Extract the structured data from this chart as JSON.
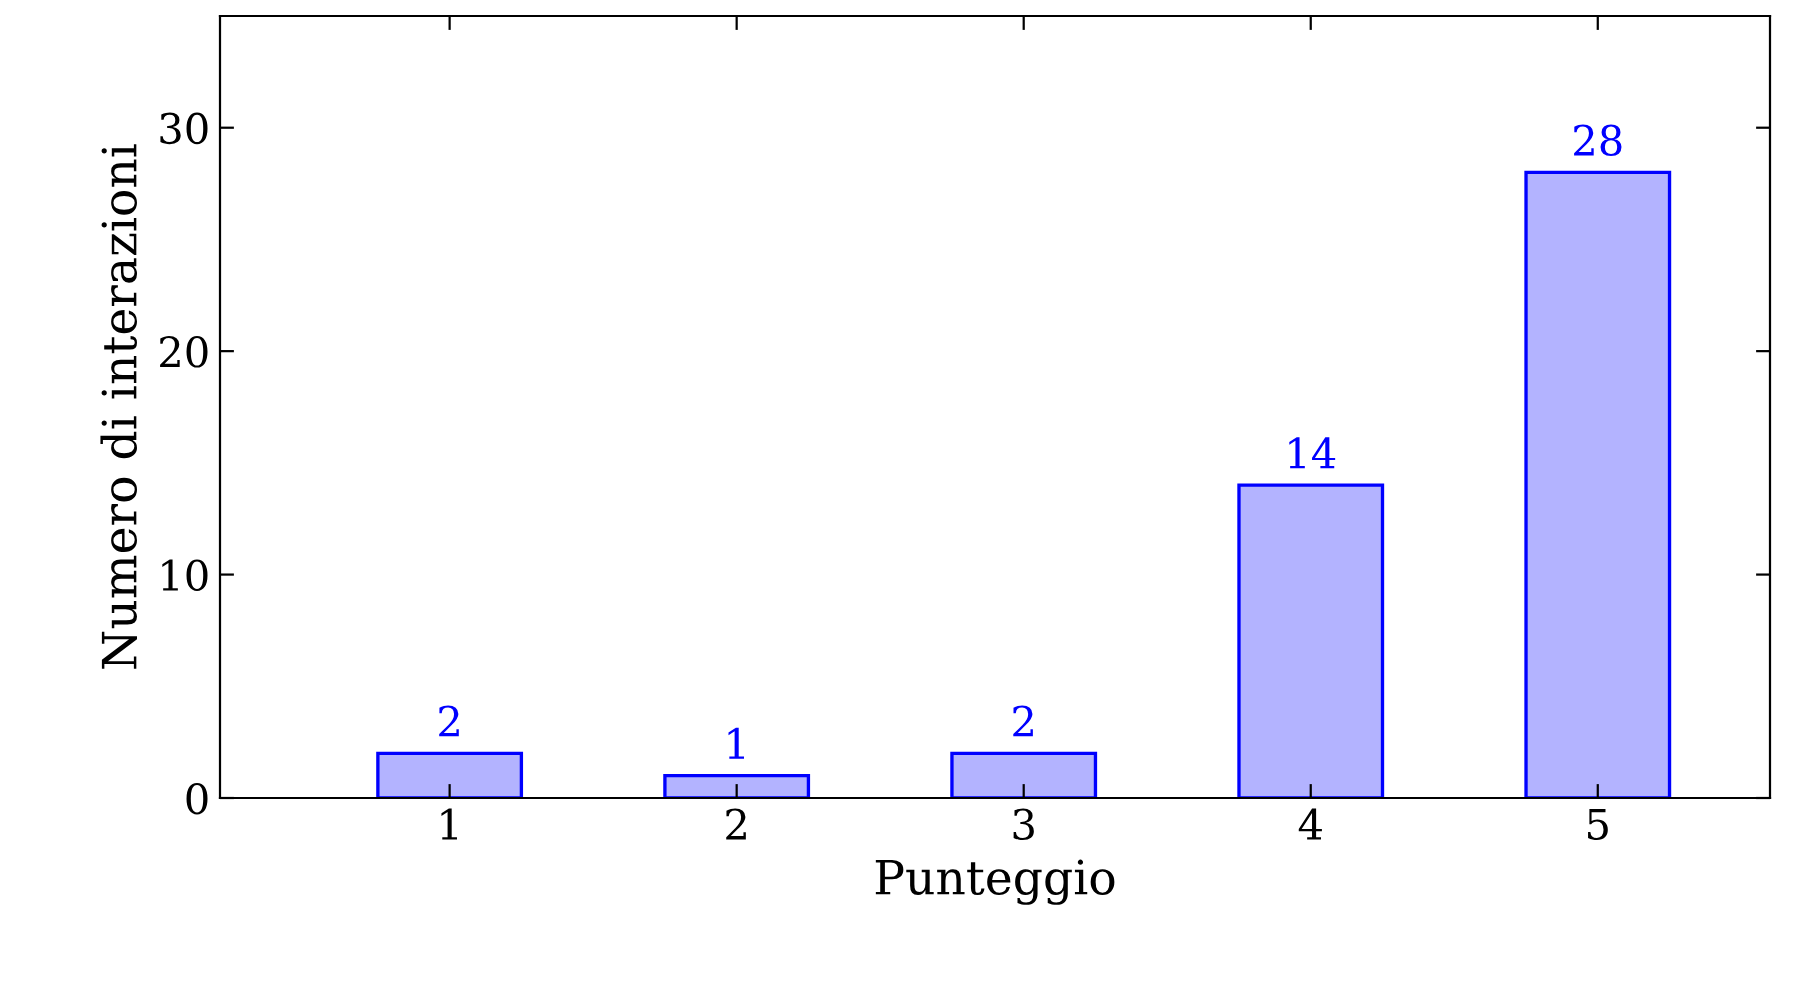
{
  "chart_data": {
    "type": "bar",
    "xlabel": "Punteggio",
    "ylabel": "Numero di interazioni",
    "x": [
      1,
      2,
      3,
      4,
      5
    ],
    "series": [
      {
        "color": "#b3b3ff",
        "values": [
          2,
          1,
          2,
          14,
          28
        ]
      }
    ],
    "xlim": [
      0.2,
      5.6
    ],
    "xticks": [
      1,
      2,
      3,
      4,
      5
    ],
    "ylim": [
      0,
      35
    ],
    "yticks": [
      0,
      10,
      20,
      30
    ],
    "data_labels": true,
    "grid": false,
    "legend": false
  }
}
